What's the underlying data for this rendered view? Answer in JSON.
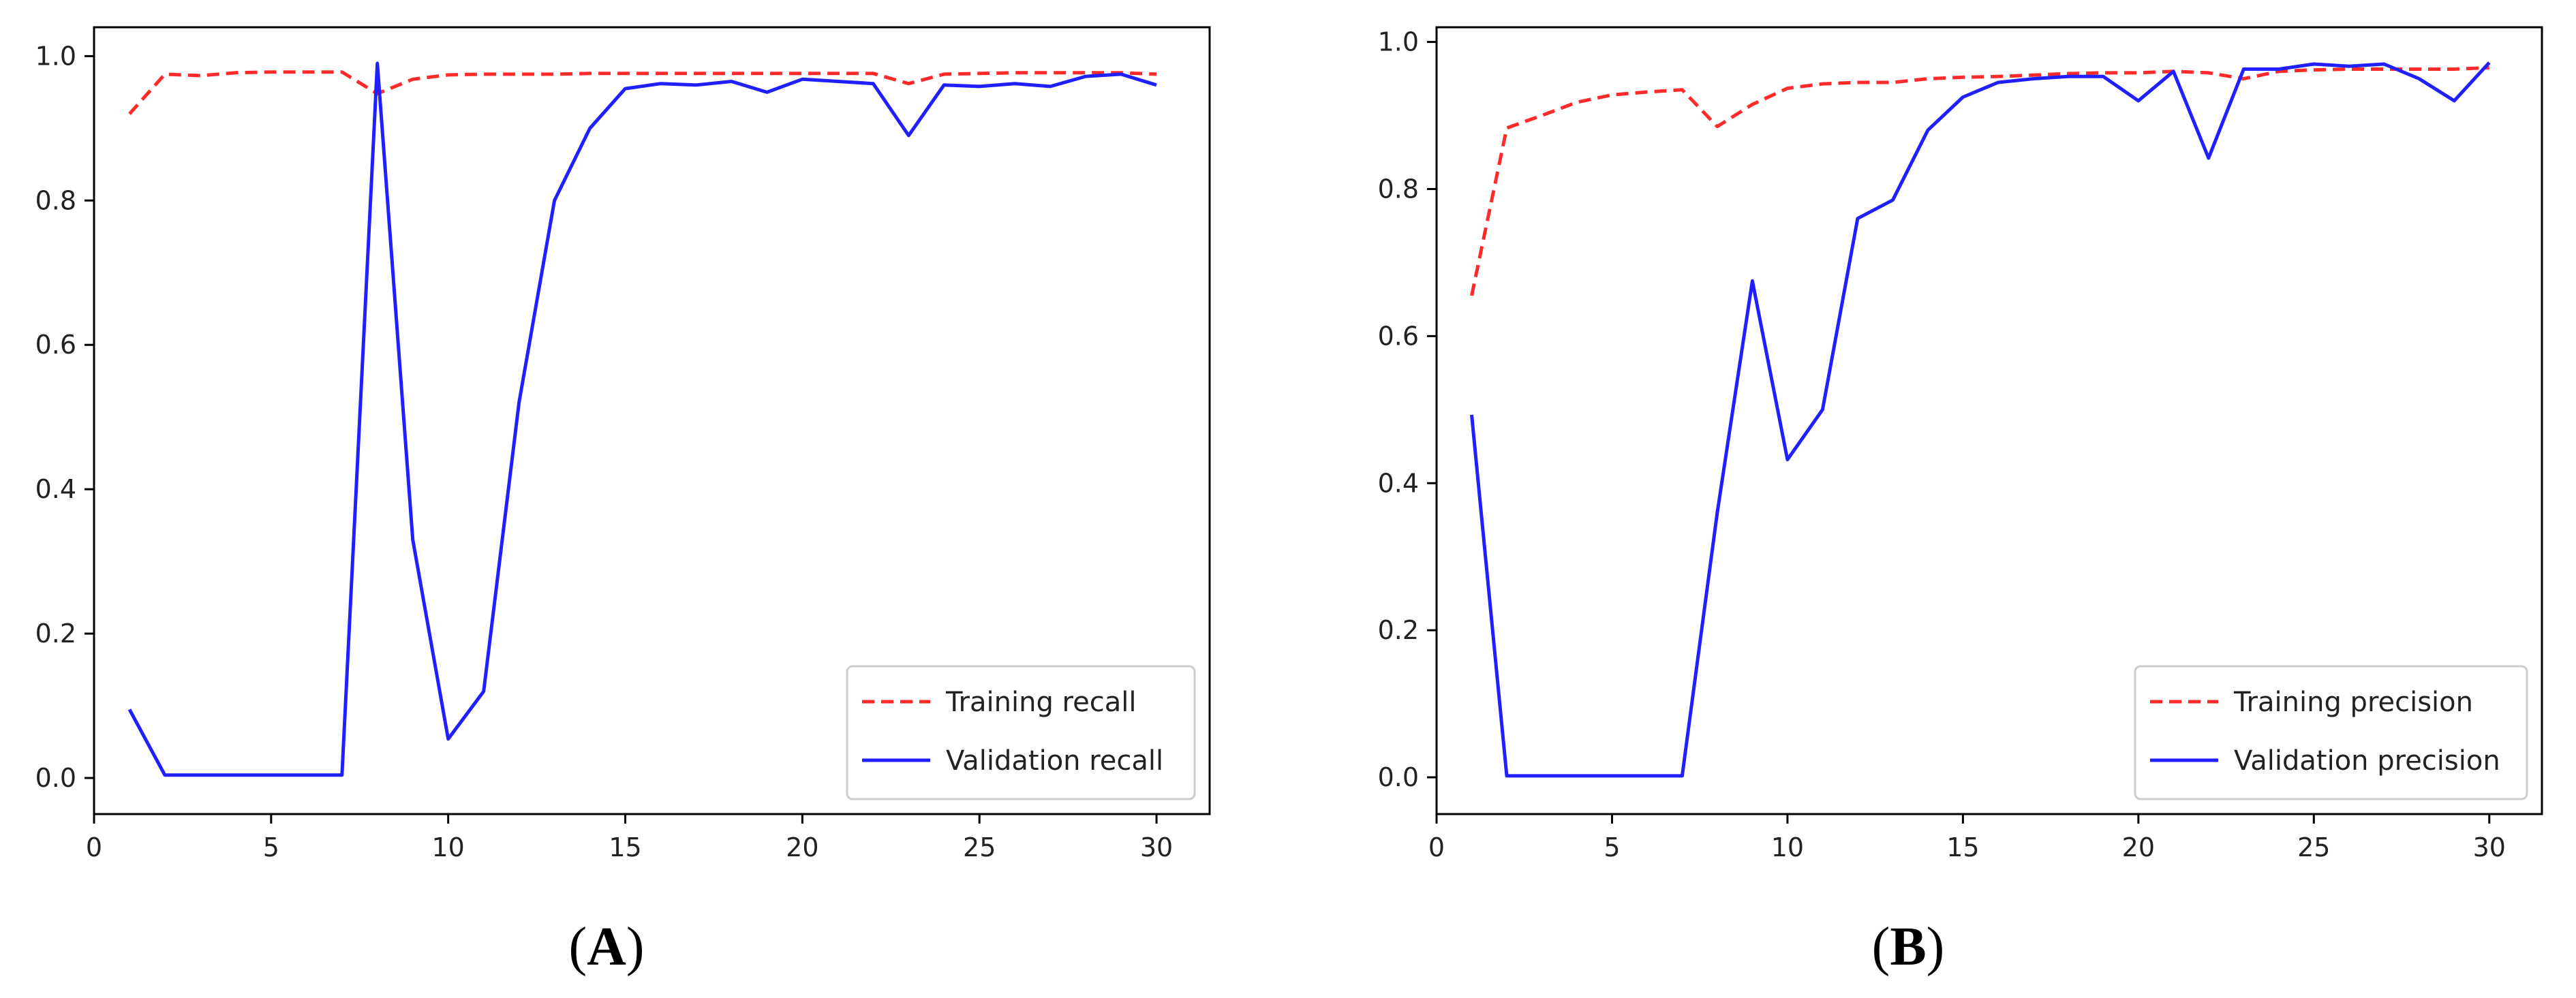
{
  "colors": {
    "training": "#ff2a2a",
    "validation": "#1f1fff",
    "axis": "#000000",
    "background": "#ffffff"
  },
  "panels": [
    {
      "caption_letter": "A",
      "caption_open": "(",
      "caption_close": ")"
    },
    {
      "caption_letter": "B",
      "caption_open": "(",
      "caption_close": ")"
    }
  ],
  "chart_data": [
    {
      "type": "line",
      "title": "",
      "xlabel": "",
      "ylabel": "",
      "xlim": [
        0,
        31.5
      ],
      "ylim": [
        -0.05,
        1.04
      ],
      "xticks": [
        0,
        5,
        10,
        15,
        20,
        25,
        30
      ],
      "yticks": [
        0.0,
        0.2,
        0.4,
        0.6,
        0.8,
        1.0
      ],
      "ytick_labels": [
        "0.0",
        "0.2",
        "0.4",
        "0.6",
        "0.8",
        "1.0"
      ],
      "legend_position": "lower-right",
      "x": [
        1,
        2,
        3,
        4,
        5,
        6,
        7,
        8,
        9,
        10,
        11,
        12,
        13,
        14,
        15,
        16,
        17,
        18,
        19,
        20,
        21,
        22,
        23,
        24,
        25,
        26,
        27,
        28,
        29,
        30
      ],
      "series": [
        {
          "name": "Training recall",
          "style": "dashed",
          "values": [
            0.92,
            0.975,
            0.973,
            0.977,
            0.978,
            0.978,
            0.978,
            0.948,
            0.968,
            0.974,
            0.975,
            0.975,
            0.975,
            0.976,
            0.976,
            0.976,
            0.976,
            0.976,
            0.976,
            0.976,
            0.976,
            0.976,
            0.962,
            0.975,
            0.976,
            0.977,
            0.977,
            0.977,
            0.977,
            0.975
          ]
        },
        {
          "name": "Validation recall",
          "style": "solid",
          "values": [
            0.095,
            0.004,
            0.004,
            0.004,
            0.004,
            0.004,
            0.004,
            0.99,
            0.33,
            0.054,
            0.12,
            0.52,
            0.8,
            0.9,
            0.955,
            0.962,
            0.96,
            0.965,
            0.95,
            0.968,
            0.965,
            0.962,
            0.89,
            0.96,
            0.958,
            0.962,
            0.958,
            0.972,
            0.975,
            0.96
          ]
        }
      ]
    },
    {
      "type": "line",
      "title": "",
      "xlabel": "",
      "ylabel": "",
      "xlim": [
        0,
        31.5
      ],
      "ylim": [
        -0.05,
        1.02
      ],
      "xticks": [
        0,
        5,
        10,
        15,
        20,
        25,
        30
      ],
      "yticks": [
        0.0,
        0.2,
        0.4,
        0.6,
        0.8,
        1.0
      ],
      "ytick_labels": [
        "0.0",
        "0.2",
        "0.4",
        "0.6",
        "0.8",
        "1.0"
      ],
      "legend_position": "lower-right",
      "x": [
        1,
        2,
        3,
        4,
        5,
        6,
        7,
        8,
        9,
        10,
        11,
        12,
        13,
        14,
        15,
        16,
        17,
        18,
        19,
        20,
        21,
        22,
        23,
        24,
        25,
        26,
        27,
        28,
        29,
        30
      ],
      "series": [
        {
          "name": "Training precision",
          "style": "dashed",
          "values": [
            0.655,
            0.883,
            0.9,
            0.918,
            0.928,
            0.932,
            0.935,
            0.885,
            0.915,
            0.937,
            0.943,
            0.945,
            0.945,
            0.95,
            0.952,
            0.953,
            0.955,
            0.957,
            0.958,
            0.958,
            0.96,
            0.958,
            0.95,
            0.96,
            0.962,
            0.963,
            0.963,
            0.963,
            0.963,
            0.965
          ]
        },
        {
          "name": "Validation precision",
          "style": "solid",
          "values": [
            0.493,
            0.002,
            0.002,
            0.002,
            0.002,
            0.002,
            0.002,
            0.36,
            0.675,
            0.432,
            0.5,
            0.76,
            0.785,
            0.88,
            0.925,
            0.945,
            0.95,
            0.953,
            0.953,
            0.92,
            0.96,
            0.842,
            0.963,
            0.963,
            0.97,
            0.967,
            0.97,
            0.95,
            0.92,
            0.972
          ]
        }
      ]
    }
  ]
}
